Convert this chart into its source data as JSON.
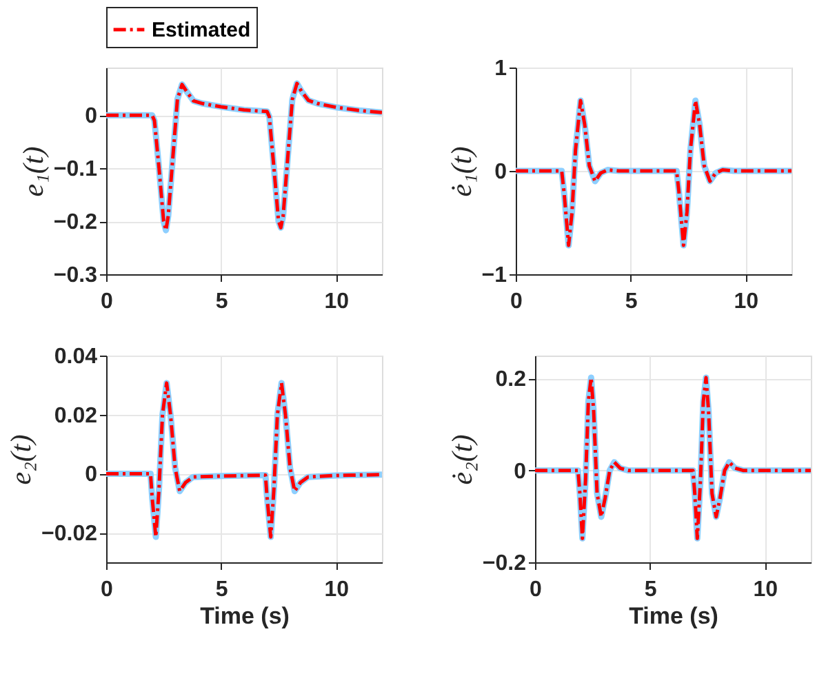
{
  "chart_data": [
    {
      "type": "line",
      "ylabel": "e₁(t)",
      "xlim": [
        0,
        12
      ],
      "xticks": [
        0,
        5,
        10
      ],
      "ylim": [
        -0.3,
        0.09
      ],
      "yticks": [
        -0.3,
        -0.2,
        -0.1,
        0
      ],
      "grid": true,
      "legend": "top",
      "x": [
        0,
        2,
        2.1,
        2.3,
        2.5,
        2.6,
        2.7,
        2.9,
        3.1,
        3.3,
        3.5,
        3.8,
        4.2,
        5,
        6,
        7,
        7.1,
        7.3,
        7.5,
        7.6,
        7.7,
        7.9,
        8.1,
        8.3,
        8.5,
        8.8,
        9.2,
        10,
        11,
        12
      ],
      "series": [
        {
          "color": "#8ecfff",
          "line_style": "solid",
          "values": [
            0,
            0,
            -0.01,
            -0.1,
            -0.2,
            -0.217,
            -0.19,
            -0.08,
            0.03,
            0.058,
            0.045,
            0.027,
            0.022,
            0.016,
            0.01,
            0.007,
            -0.003,
            -0.1,
            -0.2,
            -0.212,
            -0.19,
            -0.08,
            0.03,
            0.06,
            0.045,
            0.028,
            0.022,
            0.015,
            0.009,
            0.005
          ]
        },
        {
          "name": "Estimated",
          "color": "#ff0000",
          "line_style": "dashed",
          "values": [
            0,
            0,
            -0.01,
            -0.1,
            -0.2,
            -0.217,
            -0.19,
            -0.08,
            0.03,
            0.058,
            0.045,
            0.027,
            0.022,
            0.016,
            0.01,
            0.007,
            -0.003,
            -0.1,
            -0.2,
            -0.212,
            -0.19,
            -0.08,
            0.03,
            0.06,
            0.045,
            0.028,
            0.022,
            0.015,
            0.009,
            0.005
          ]
        }
      ]
    },
    {
      "type": "line",
      "ylabel": "ė₁(t)",
      "xlim": [
        0,
        12
      ],
      "xticks": [
        0,
        5,
        10
      ],
      "ylim": [
        -1,
        1
      ],
      "yticks": [
        -1,
        0,
        1
      ],
      "grid": true,
      "x": [
        0,
        2,
        2.1,
        2.3,
        2.45,
        2.6,
        2.82,
        3.0,
        3.2,
        3.45,
        3.7,
        4.0,
        4.5,
        7.0,
        7.1,
        7.3,
        7.45,
        7.6,
        7.82,
        8.0,
        8.2,
        8.45,
        8.7,
        9.0,
        9.5,
        12
      ],
      "series": [
        {
          "color": "#8ecfff",
          "line_style": "solid",
          "values": [
            0,
            0,
            -0.2,
            -0.72,
            -0.4,
            0.2,
            0.68,
            0.45,
            0.05,
            -0.1,
            -0.02,
            0.01,
            0,
            0,
            -0.2,
            -0.72,
            -0.4,
            0.2,
            0.68,
            0.45,
            0.05,
            -0.1,
            -0.02,
            0.01,
            0,
            0
          ]
        },
        {
          "name": "Estimated",
          "color": "#ff0000",
          "line_style": "dashed",
          "values": [
            0,
            0,
            -0.2,
            -0.72,
            -0.4,
            0.2,
            0.68,
            0.45,
            0.05,
            -0.1,
            -0.02,
            0.01,
            0,
            0,
            -0.2,
            -0.72,
            -0.4,
            0.2,
            0.68,
            0.45,
            0.05,
            -0.1,
            -0.02,
            0.01,
            0,
            0
          ]
        }
      ]
    },
    {
      "type": "line",
      "xlabel": "Time (s)",
      "ylabel": "e₂(t)",
      "xlim": [
        0,
        12
      ],
      "xticks": [
        0,
        5,
        10
      ],
      "ylim": [
        -0.03,
        0.04
      ],
      "yticks": [
        -0.02,
        0,
        0.02,
        0.04
      ],
      "grid": true,
      "x": [
        0,
        1.93,
        2.0,
        2.16,
        2.3,
        2.45,
        2.63,
        2.8,
        3.0,
        3.2,
        3.45,
        3.78,
        5,
        6.93,
        7.0,
        7.16,
        7.3,
        7.45,
        7.63,
        7.8,
        8.0,
        8.2,
        8.45,
        8.78,
        10,
        12
      ],
      "series": [
        {
          "color": "#8ecfff",
          "line_style": "solid",
          "values": [
            0,
            0,
            -0.008,
            -0.0214,
            -0.005,
            0.02,
            0.0307,
            0.02,
            0.002,
            -0.0059,
            -0.003,
            -0.0011,
            -0.0008,
            -0.0005,
            -0.008,
            -0.0214,
            -0.005,
            0.02,
            0.0307,
            0.02,
            0.002,
            -0.0059,
            -0.003,
            -0.0011,
            -0.0006,
            -0.0003
          ]
        },
        {
          "name": "Estimated",
          "color": "#ff0000",
          "line_style": "dashed",
          "values": [
            0,
            0,
            -0.008,
            -0.0214,
            -0.005,
            0.02,
            0.0307,
            0.02,
            0.002,
            -0.0059,
            -0.003,
            -0.0011,
            -0.0008,
            -0.0005,
            -0.008,
            -0.0214,
            -0.005,
            0.02,
            0.0307,
            0.02,
            0.002,
            -0.0059,
            -0.003,
            -0.0011,
            -0.0006,
            -0.0003
          ]
        }
      ]
    },
    {
      "type": "line",
      "xlabel": "Time (s)",
      "ylabel": "ė₂(t)",
      "xlim": [
        0,
        12
      ],
      "xticks": [
        0,
        5,
        10
      ],
      "ylim": [
        -0.2,
        0.25
      ],
      "yticks": [
        -0.2,
        0,
        0.2
      ],
      "grid": true,
      "x": [
        0,
        1.87,
        1.95,
        2.06,
        2.2,
        2.32,
        2.44,
        2.55,
        2.7,
        2.88,
        3.05,
        3.25,
        3.45,
        3.7,
        4.05,
        6.87,
        6.95,
        7.06,
        7.2,
        7.32,
        7.44,
        7.55,
        7.7,
        7.88,
        8.05,
        8.25,
        8.45,
        8.7,
        9.05,
        12
      ],
      "series": [
        {
          "color": "#8ecfff",
          "line_style": "solid",
          "values": [
            0,
            0,
            -0.05,
            -0.148,
            -0.02,
            0.15,
            0.202,
            0.13,
            -0.05,
            -0.101,
            -0.06,
            0,
            0.018,
            0.005,
            0,
            0,
            -0.05,
            -0.148,
            -0.02,
            0.15,
            0.202,
            0.13,
            -0.05,
            -0.101,
            -0.06,
            0,
            0.018,
            0.005,
            0,
            0
          ]
        },
        {
          "name": "Estimated",
          "color": "#ff0000",
          "line_style": "dashed",
          "values": [
            0,
            0,
            -0.05,
            -0.148,
            -0.02,
            0.15,
            0.202,
            0.13,
            -0.05,
            -0.101,
            -0.06,
            0,
            0.018,
            0.005,
            0,
            0,
            -0.05,
            -0.148,
            -0.02,
            0.15,
            0.202,
            0.13,
            -0.05,
            -0.101,
            -0.06,
            0,
            0.018,
            0.005,
            0,
            0
          ]
        }
      ]
    }
  ]
}
